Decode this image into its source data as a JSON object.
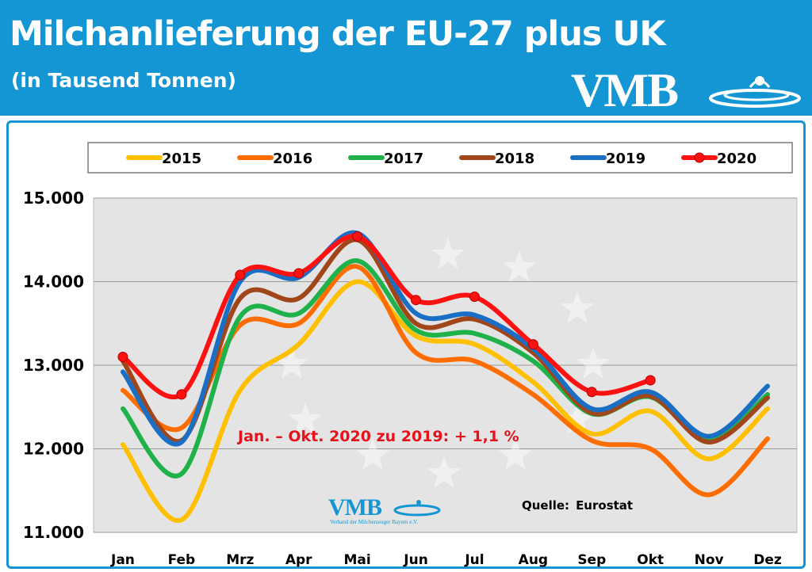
{
  "header": {
    "title": "Milchanlieferung der EU-27 plus UK",
    "subtitle": "(in Tausend Tonnen)",
    "logo_text": "VMB"
  },
  "annotation": "Jan. – Okt. 2020 zu 2019: + 1,1 %",
  "source": {
    "label": "Quelle:",
    "value": "Eurostat"
  },
  "watermark_logo": {
    "text": "VMB",
    "subtext": "Verband der Milcherzeuger Bayern e.V."
  },
  "colors": {
    "banner": "#1496d4",
    "plot_bg": "#e4e4e4",
    "annotation": "#e8111b"
  },
  "chart_data": {
    "type": "line",
    "title": "Milchanlieferung der EU-27 plus UK",
    "xlabel": "",
    "ylabel": "",
    "categories": [
      "Jan",
      "Feb",
      "Mrz",
      "Apr",
      "Mai",
      "Jun",
      "Jul",
      "Aug",
      "Sep",
      "Okt",
      "Nov",
      "Dez"
    ],
    "ylim": [
      11000,
      15000
    ],
    "yticks": [
      11000,
      12000,
      13000,
      14000,
      15000
    ],
    "ytick_labels": [
      "11.000",
      "12.000",
      "13.000",
      "14.000",
      "15.000"
    ],
    "grid": true,
    "legend_position": "top",
    "series": [
      {
        "name": "2015",
        "color": "#ffc000",
        "markers": false,
        "values": [
          12050,
          11150,
          12700,
          13250,
          14000,
          13350,
          13250,
          12800,
          12180,
          12450,
          11880,
          12480
        ]
      },
      {
        "name": "2016",
        "color": "#ff6d00",
        "markers": false,
        "values": [
          12700,
          12250,
          13480,
          13500,
          14180,
          13150,
          13050,
          12650,
          12100,
          12000,
          11450,
          12120
        ]
      },
      {
        "name": "2017",
        "color": "#1fb24a",
        "markers": false,
        "values": [
          12480,
          11700,
          13580,
          13620,
          14250,
          13420,
          13380,
          13050,
          12420,
          12620,
          12100,
          12650
        ]
      },
      {
        "name": "2018",
        "color": "#a0461a",
        "markers": false,
        "values": [
          13050,
          12100,
          13800,
          13800,
          14500,
          13500,
          13550,
          13150,
          12430,
          12630,
          12080,
          12610
        ]
      },
      {
        "name": "2019",
        "color": "#1a6fc4",
        "markers": false,
        "values": [
          12920,
          12080,
          14000,
          14050,
          14580,
          13620,
          13600,
          13200,
          12480,
          12680,
          12150,
          12750
        ]
      },
      {
        "name": "2020",
        "color": "#ff1111",
        "markers": true,
        "values": [
          13100,
          12650,
          14080,
          14100,
          14540,
          13780,
          13820,
          13250,
          12680,
          12820,
          null,
          null
        ]
      }
    ]
  }
}
